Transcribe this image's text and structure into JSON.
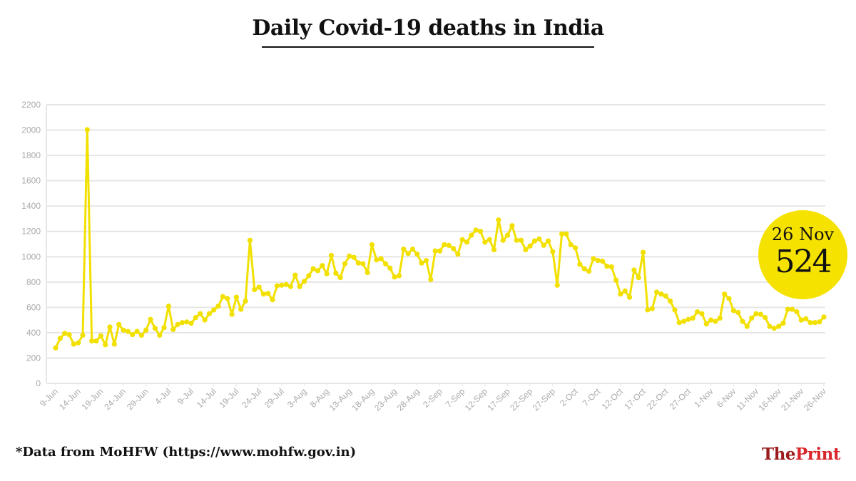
{
  "title": "Daily Covid-19 deaths in India",
  "source": "*Data from MoHFW (https://www.mohfw.gov.in)",
  "logo": {
    "the": "The",
    "print": "Print"
  },
  "callout": {
    "date": "26 Nov",
    "value": "524"
  },
  "colors": {
    "line": "#f2e000",
    "callout": "#f6e200",
    "grid": "#e6e6e6",
    "axis_text": "#aaaaaa"
  },
  "chart_data": {
    "type": "line",
    "title": "Daily Covid-19 deaths in India",
    "xlabel": "",
    "ylabel": "",
    "ylim": [
      0,
      2200
    ],
    "yticks": [
      0,
      200,
      400,
      600,
      800,
      1000,
      1200,
      1400,
      1600,
      1800,
      2000,
      2200
    ],
    "xtick_labels": [
      "9-Jun",
      "14-Jun",
      "19-Jun",
      "24-Jun",
      "29-Jun",
      "4-Jul",
      "9-Jul",
      "14-Jul",
      "19-Jul",
      "24-Jul",
      "29-Jul",
      "3-Aug",
      "8-Aug",
      "13-Aug",
      "18-Aug",
      "23-Aug",
      "28-Aug",
      "2-Sep",
      "7-Sep",
      "12-Sep",
      "17-Sep",
      "22-Sep",
      "27-Sep",
      "2-Oct",
      "7-Oct",
      "12-Oct",
      "17-Oct",
      "22-Oct",
      "27-Oct",
      "1-Nov",
      "6-Nov",
      "11-Nov",
      "16-Nov",
      "21-Nov",
      "26-Nov"
    ],
    "x_start": "9-Jun",
    "x_end": "26-Nov",
    "grid": true,
    "values": [
      280,
      355,
      395,
      385,
      310,
      320,
      380,
      2003,
      335,
      335,
      375,
      305,
      445,
      310,
      465,
      420,
      410,
      385,
      410,
      380,
      420,
      505,
      435,
      380,
      440,
      610,
      425,
      465,
      480,
      485,
      475,
      520,
      550,
      500,
      550,
      580,
      610,
      685,
      670,
      545,
      680,
      585,
      650,
      1130,
      740,
      760,
      705,
      710,
      660,
      770,
      775,
      780,
      765,
      855,
      765,
      805,
      850,
      905,
      890,
      930,
      865,
      1010,
      870,
      835,
      945,
      1005,
      995,
      950,
      945,
      875,
      1095,
      975,
      985,
      945,
      910,
      840,
      850,
      1060,
      1025,
      1060,
      1020,
      950,
      970,
      820,
      1045,
      1045,
      1095,
      1090,
      1065,
      1020,
      1135,
      1115,
      1170,
      1210,
      1200,
      1115,
      1135,
      1055,
      1290,
      1130,
      1170,
      1245,
      1130,
      1130,
      1055,
      1085,
      1125,
      1140,
      1090,
      1125,
      1040,
      775,
      1180,
      1180,
      1095,
      1070,
      940,
      905,
      885,
      985,
      970,
      965,
      925,
      920,
      815,
      705,
      730,
      680,
      895,
      835,
      1035,
      580,
      590,
      720,
      705,
      690,
      650,
      580,
      480,
      490,
      505,
      515,
      565,
      550,
      470,
      500,
      490,
      515,
      705,
      670,
      575,
      560,
      490,
      450,
      515,
      550,
      545,
      520,
      450,
      435,
      450,
      475,
      585,
      585,
      565,
      500,
      510,
      480,
      480,
      485,
      524
    ]
  }
}
